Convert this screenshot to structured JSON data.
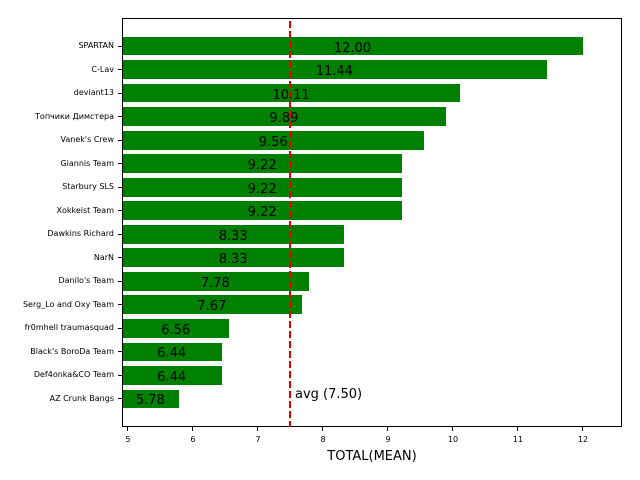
{
  "chart_data": {
    "type": "bar",
    "orientation": "horizontal",
    "title": "",
    "xlabel": "TOTAL(MEAN)",
    "ylabel": "",
    "categories": [
      "SPARTAN",
      "C-Lav",
      "deviant13",
      "Топчики Димстера",
      "Vanek's Crew",
      "Giannis Team",
      "Starbury SLS",
      "Xokkeist Team",
      "Dawkins Richard",
      "NarN",
      "Danilo's Team",
      "Serg_Lo and Oxy Team",
      "fr0mhell traumasquad",
      "Black's BoroDa Team",
      "Def4onka&CO Team",
      "AZ Crunk Bangs"
    ],
    "values": [
      12.0,
      11.44,
      10.11,
      9.89,
      9.56,
      9.22,
      9.22,
      9.22,
      8.33,
      8.33,
      7.78,
      7.67,
      6.56,
      6.44,
      6.44,
      5.78
    ],
    "value_labels": [
      "12.00",
      "11.44",
      "10.11",
      "9.89",
      "9.56",
      "9.22",
      "9.22",
      "9.22",
      "8.33",
      "8.33",
      "7.78",
      "7.67",
      "6.56",
      "6.44",
      "6.44",
      "5.78"
    ],
    "bar_color": "#008000",
    "xlim": [
      4.908,
      12.6
    ],
    "xticks": [
      5,
      6,
      7,
      8,
      9,
      10,
      11,
      12
    ],
    "xtick_labels": [
      "5",
      "6",
      "7",
      "8",
      "9",
      "10",
      "11",
      "12"
    ],
    "grid": false,
    "legend": null,
    "reference_line": {
      "value": 7.5,
      "label": "avg (7.50)",
      "color": "#e80000",
      "style": "dashed"
    }
  }
}
